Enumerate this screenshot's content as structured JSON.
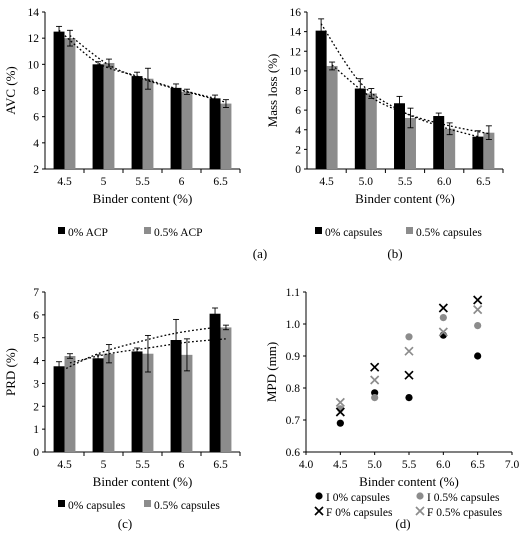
{
  "chart_data": [
    {
      "type": "bar",
      "panel_label": "(a)",
      "xlabel": "Binder content (%)",
      "ylabel": "AVC (%)",
      "ylim": [
        2,
        14
      ],
      "yticks": [
        2,
        4,
        6,
        8,
        10,
        12,
        14
      ],
      "categories": [
        "4.5",
        "5",
        "5.5",
        "6",
        "6.5"
      ],
      "series": [
        {
          "name": "0% ACP",
          "color": "#000000",
          "values": [
            12.5,
            10.0,
            9.1,
            8.2,
            7.4
          ],
          "errors": [
            0.4,
            0.2,
            0.3,
            0.3,
            0.25
          ],
          "trend": [
            12.6,
            10.1,
            9.1,
            8.15,
            7.4
          ]
        },
        {
          "name": "0.5% ACP",
          "color": "#8c8c8c",
          "values": [
            12.0,
            10.1,
            8.9,
            7.9,
            7.0
          ],
          "errors": [
            0.6,
            0.3,
            0.8,
            0.2,
            0.3
          ],
          "trend": [
            12.2,
            9.95,
            8.75,
            7.9,
            7.1
          ]
        }
      ],
      "grid": false,
      "legend": "bottom"
    },
    {
      "type": "bar",
      "panel_label": "(b)",
      "xlabel": "Binder content (%)",
      "ylabel": "Mass loss (%)",
      "ylim": [
        0,
        16
      ],
      "yticks": [
        0,
        2,
        4,
        6,
        8,
        10,
        12,
        14,
        16
      ],
      "categories": [
        "4.5",
        "5.0",
        "5.5",
        "6.0",
        "6.5"
      ],
      "series": [
        {
          "name": "0% capsules",
          "color": "#000000",
          "values": [
            14.1,
            8.2,
            6.7,
            5.4,
            3.3
          ],
          "errors": [
            1.2,
            1.0,
            0.7,
            0.3,
            0.6
          ],
          "trend": [
            14.8,
            8.8,
            6.0,
            4.4,
            3.3
          ]
        },
        {
          "name": "0.5% capsules",
          "color": "#8c8c8c",
          "values": [
            10.5,
            7.7,
            5.2,
            4.1,
            3.7
          ],
          "errors": [
            0.4,
            0.5,
            1.0,
            0.6,
            0.7
          ],
          "trend": [
            10.6,
            7.3,
            5.5,
            4.4,
            3.6
          ]
        }
      ],
      "grid": false,
      "legend": "bottom"
    },
    {
      "type": "bar",
      "panel_label": "(c)",
      "xlabel": "Binder content  (%)",
      "ylabel": "PRD (%)",
      "ylim": [
        0,
        7
      ],
      "yticks": [
        0,
        1,
        2,
        3,
        4,
        5,
        6,
        7
      ],
      "categories": [
        "4.5",
        "5",
        "5.5",
        "6",
        "6.5"
      ],
      "series": [
        {
          "name": "0% capsules",
          "color": "#000000",
          "values": [
            3.75,
            4.1,
            4.4,
            4.9,
            6.05
          ],
          "errors": [
            0.2,
            0.15,
            0.15,
            0.9,
            0.25
          ],
          "trend": [
            3.5,
            4.3,
            4.8,
            5.2,
            5.45
          ]
        },
        {
          "name": "0.5% capsules",
          "color": "#8c8c8c",
          "values": [
            4.2,
            4.3,
            4.3,
            4.25,
            5.45
          ],
          "errors": [
            0.1,
            0.4,
            0.8,
            0.7,
            0.1
          ],
          "trend": [
            3.9,
            4.3,
            4.55,
            4.8,
            4.95
          ]
        }
      ],
      "grid": false,
      "legend": "bottom"
    },
    {
      "type": "scatter",
      "panel_label": "(d)",
      "xlabel": "Binder content (%)",
      "ylabel": "MPD (mm)",
      "xlim": [
        4.0,
        7.0
      ],
      "ylim": [
        0.6,
        1.1
      ],
      "xticks": [
        "4.0",
        "4.5",
        "5.0",
        "5.5",
        "6.0",
        "6.5",
        "7.0"
      ],
      "yticks": [
        "0.6",
        "0.7",
        "0.8",
        "0.9",
        "1.0",
        "1.1"
      ],
      "series": [
        {
          "name": "I 0% capsules",
          "marker": "circle",
          "color": "#000000",
          "x": [
            4.5,
            5.0,
            5.5,
            6.0,
            6.5
          ],
          "y": [
            0.69,
            0.785,
            0.77,
            0.965,
            0.9
          ]
        },
        {
          "name": "I 0.5% capsules",
          "marker": "circle",
          "color": "#8c8c8c",
          "x": [
            4.5,
            5.0,
            5.5,
            6.0,
            6.5
          ],
          "y": [
            0.735,
            0.77,
            0.96,
            1.02,
            0.995
          ]
        },
        {
          "name": "F 0% capsules",
          "marker": "x",
          "color": "#000000",
          "x": [
            4.5,
            5.0,
            5.5,
            6.0,
            6.5
          ],
          "y": [
            0.725,
            0.865,
            0.84,
            1.05,
            1.075
          ]
        },
        {
          "name": "F 0.5% cpasules",
          "marker": "x",
          "color": "#8c8c8c",
          "x": [
            4.5,
            5.0,
            5.5,
            6.0,
            6.5
          ],
          "y": [
            0.755,
            0.825,
            0.915,
            0.975,
            1.045
          ]
        }
      ],
      "grid": false,
      "legend": "bottom"
    }
  ]
}
